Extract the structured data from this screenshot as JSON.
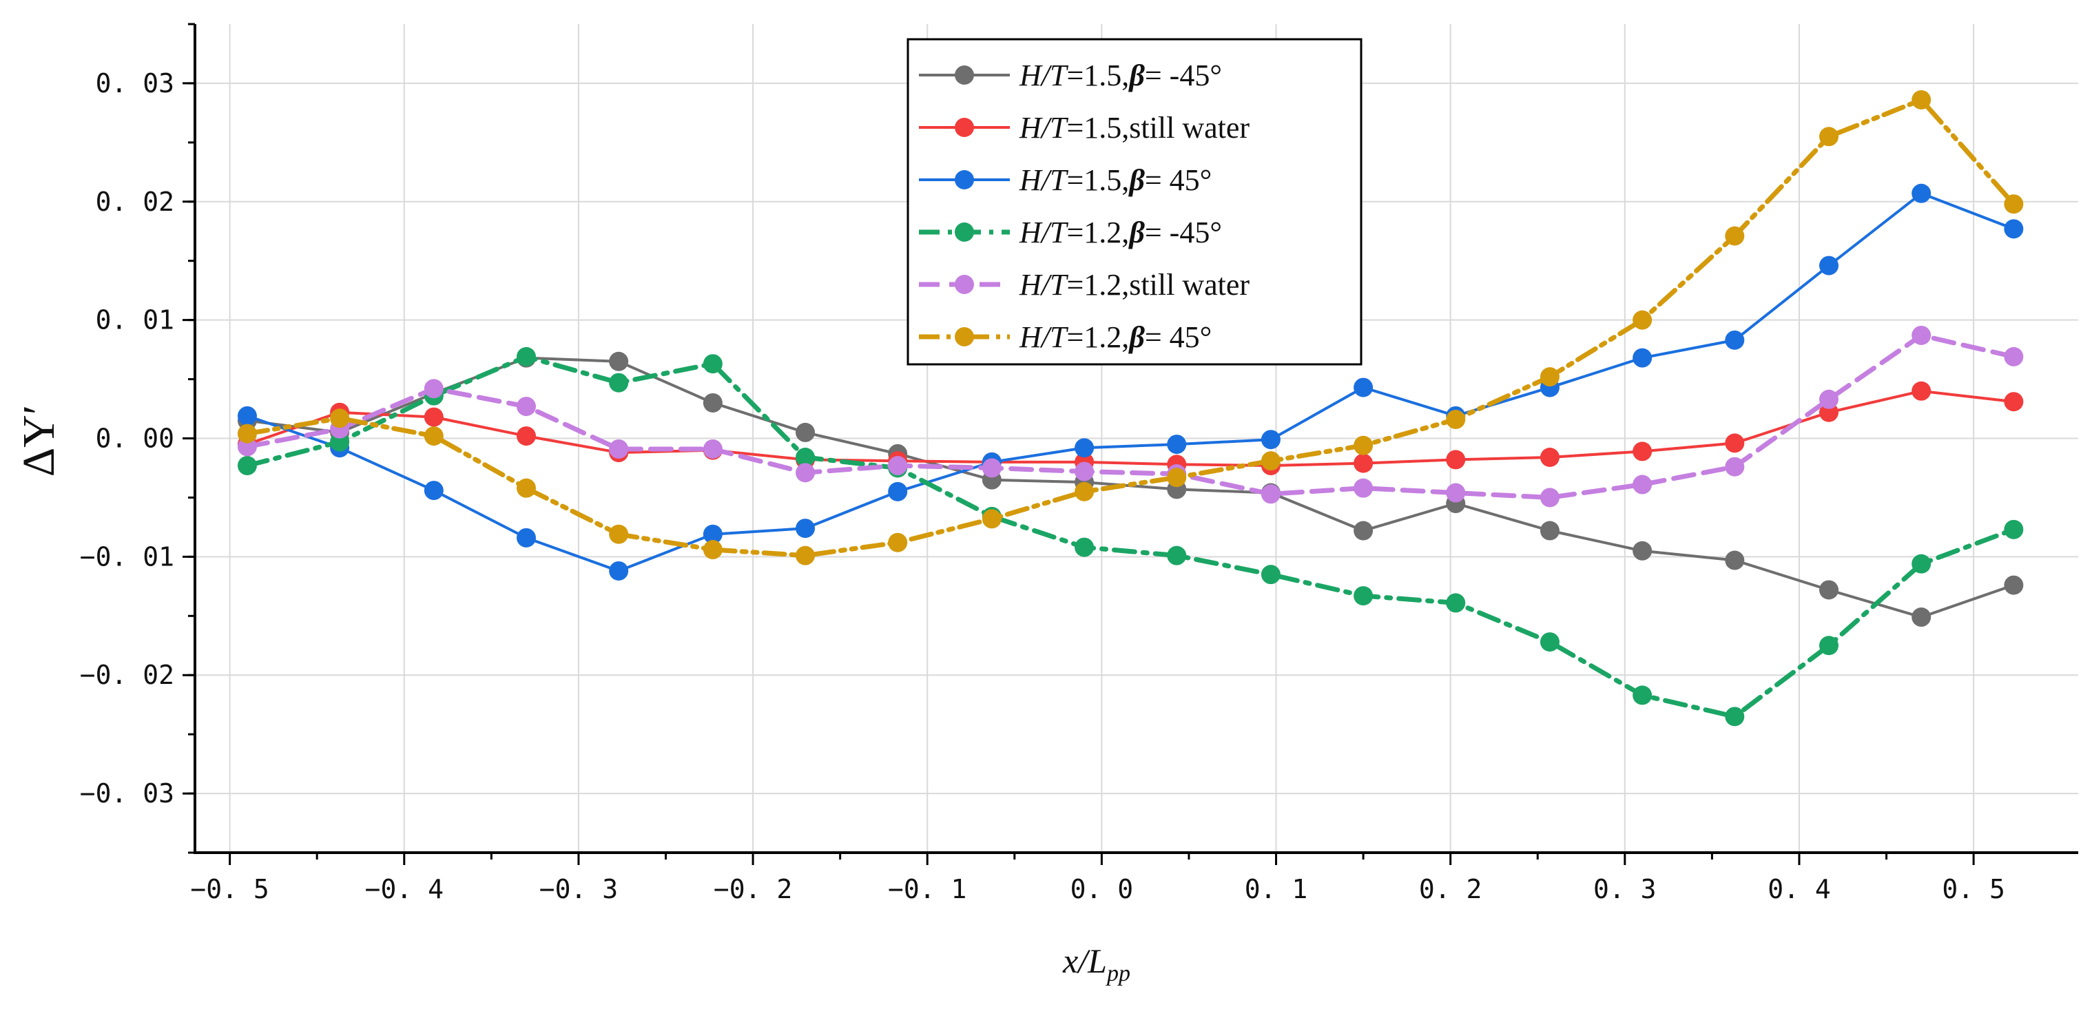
{
  "chart_data": {
    "type": "line",
    "title": "",
    "xlabel": "x/L_pp",
    "xlabel_parts": {
      "main": "x/L",
      "sub": "pp"
    },
    "ylabel": "ΔY′",
    "xlim": [
      -0.52,
      0.56
    ],
    "ylim": [
      -0.035,
      0.035
    ],
    "x_ticks": [
      -0.5,
      -0.4,
      -0.3,
      -0.2,
      -0.1,
      0.0,
      0.1,
      0.2,
      0.3,
      0.4,
      0.5
    ],
    "x_tick_labels": [
      "−0. 5",
      "−0. 4",
      "−0. 3",
      "−0. 2",
      "−0. 1",
      "0. 0",
      "0. 1",
      "0. 2",
      "0. 3",
      "0. 4",
      "0. 5"
    ],
    "y_ticks": [
      -0.03,
      -0.02,
      -0.01,
      0.0,
      0.01,
      0.02,
      0.03
    ],
    "y_tick_labels": [
      "−0. 03",
      "−0. 02",
      "−0. 01",
      "0. 00",
      "0. 01",
      "0. 02",
      "0. 03"
    ],
    "grid": true,
    "legend_position": "top-center",
    "x": [
      -0.49,
      -0.437,
      -0.383,
      -0.33,
      -0.277,
      -0.223,
      -0.17,
      -0.117,
      -0.063,
      -0.01,
      0.043,
      0.097,
      0.15,
      0.203,
      0.257,
      0.31,
      0.363,
      0.417,
      0.47,
      0.523
    ],
    "series": [
      {
        "name": "H/T=1.5,β= -45°",
        "legend_parts": {
          "h": "H",
          "t": "/T",
          "rest": "=1.5,",
          "greek": "β",
          "tail": "= -45°"
        },
        "color": "#6e6e6e",
        "style": "solid",
        "values": [
          0.0015,
          0.0005,
          0.0038,
          0.0068,
          0.0065,
          0.003,
          0.0005,
          -0.0013,
          -0.0035,
          -0.0037,
          -0.0043,
          -0.0046,
          -0.0078,
          -0.0055,
          -0.0078,
          -0.0095,
          -0.0103,
          -0.0128,
          -0.0151,
          -0.0124
        ]
      },
      {
        "name": "H/T=1.5,still water",
        "legend_parts": {
          "h": "H",
          "t": "/T",
          "rest": "=1.5,still water",
          "greek": "",
          "tail": ""
        },
        "color": "#f23b3b",
        "style": "solid",
        "values": [
          -0.0005,
          0.0022,
          0.0018,
          0.0002,
          -0.0012,
          -0.001,
          -0.0018,
          -0.0019,
          -0.002,
          -0.002,
          -0.0022,
          -0.0023,
          -0.0021,
          -0.0018,
          -0.0016,
          -0.0011,
          -0.0004,
          0.0022,
          0.004,
          0.0031
        ]
      },
      {
        "name": "H/T=1.5,β= 45°",
        "legend_parts": {
          "h": "H",
          "t": "/T",
          "rest": "=1.5,",
          "greek": "β",
          "tail": "= 45°"
        },
        "color": "#1a6fdf",
        "style": "solid",
        "values": [
          0.0019,
          -0.0008,
          -0.0044,
          -0.0084,
          -0.0112,
          -0.0081,
          -0.0076,
          -0.0045,
          -0.002,
          -0.0008,
          -0.0005,
          -0.0001,
          0.0043,
          0.0019,
          0.0043,
          0.0068,
          0.0083,
          0.0146,
          0.0207,
          0.0177
        ]
      },
      {
        "name": "H/T=1.2,β= -45°",
        "legend_parts": {
          "h": "H",
          "t": "/T",
          "rest": "=1.2,",
          "greek": "β",
          "tail": "= -45°"
        },
        "color": "#1aa564",
        "style": "dashdot",
        "values": [
          -0.0023,
          -0.0003,
          0.0036,
          0.0069,
          0.0047,
          0.0063,
          -0.0016,
          -0.0025,
          -0.0066,
          -0.0092,
          -0.0099,
          -0.0115,
          -0.0133,
          -0.0139,
          -0.0172,
          -0.0217,
          -0.0235,
          -0.0175,
          -0.0106,
          -0.0077
        ]
      },
      {
        "name": "H/T=1.2,still water",
        "legend_parts": {
          "h": "H",
          "t": "/T",
          "rest": "=1.2,still water",
          "greek": "",
          "tail": ""
        },
        "color": "#c47fe0",
        "style": "dash",
        "values": [
          -0.0007,
          0.0008,
          0.0042,
          0.0027,
          -0.0009,
          -0.0009,
          -0.0029,
          -0.0023,
          -0.0025,
          -0.0028,
          -0.003,
          -0.0047,
          -0.0042,
          -0.0046,
          -0.005,
          -0.0039,
          -0.0024,
          0.0033,
          0.0087,
          0.0069
        ]
      },
      {
        "name": "H/T=1.2,β= 45°",
        "legend_parts": {
          "h": "H",
          "t": "/T",
          "rest": "=1.2,",
          "greek": "β",
          "tail": "= 45°"
        },
        "color": "#d49a0b",
        "style": "dashdotdot",
        "values": [
          0.0004,
          0.0017,
          0.0002,
          -0.0042,
          -0.0081,
          -0.0094,
          -0.0099,
          -0.0088,
          -0.0068,
          -0.0045,
          -0.0033,
          -0.0019,
          -0.0006,
          0.0016,
          0.0052,
          0.01,
          0.0171,
          0.0255,
          0.0286,
          0.0198
        ]
      }
    ]
  }
}
